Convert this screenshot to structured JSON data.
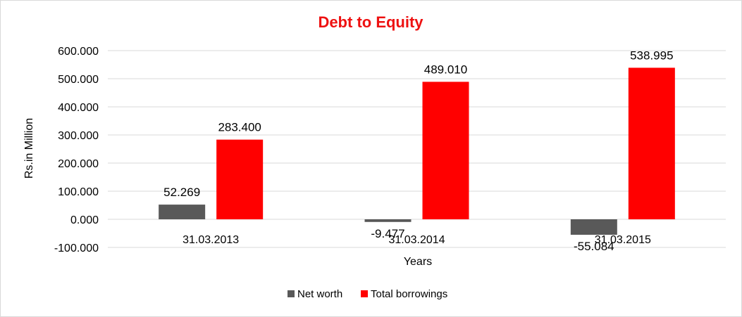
{
  "chart_data": {
    "type": "bar",
    "title": "Debt to Equity",
    "xlabel": "Years",
    "ylabel": "Rs.in Million",
    "categories": [
      "31.03.2013",
      "31.03.2014",
      "31.03.2015"
    ],
    "series": [
      {
        "name": "Net worth",
        "values": [
          52.269,
          -9.477,
          -55.084
        ],
        "labels": [
          "52.269",
          "-9.477",
          "-55.084"
        ],
        "color": "#595959"
      },
      {
        "name": "Total borrowings",
        "values": [
          283.4,
          489.01,
          538.995
        ],
        "labels": [
          "283.400",
          "489.010",
          "538.995"
        ],
        "color": "#ff0000"
      }
    ],
    "ylim": [
      -100,
      600
    ],
    "yticks": [
      600,
      500,
      400,
      300,
      200,
      100,
      0,
      -100
    ],
    "ytick_labels": [
      "600.000",
      "500.000",
      "400.000",
      "300.000",
      "200.000",
      "100.000",
      "0.000",
      "-100.000"
    ],
    "grid": true,
    "legend_position": "bottom",
    "title_color": "#ee1111"
  }
}
